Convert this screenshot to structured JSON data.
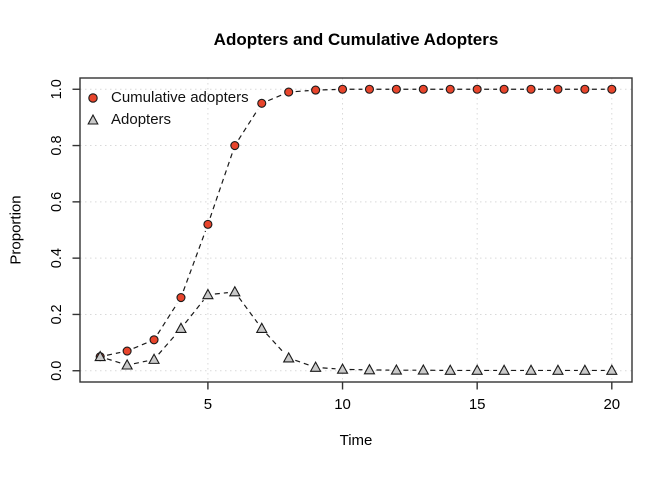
{
  "chart_data": {
    "type": "line",
    "title": "Adopters and Cumulative Adopters",
    "xlabel": "Time",
    "ylabel": "Proportion",
    "x": [
      1,
      2,
      3,
      4,
      5,
      6,
      7,
      8,
      9,
      10,
      11,
      12,
      13,
      14,
      15,
      16,
      17,
      18,
      19,
      20
    ],
    "series": [
      {
        "name": "Cumulative adopters",
        "marker": "circle",
        "marker_fill": "#e8452c",
        "values": [
          0.05,
          0.07,
          0.11,
          0.26,
          0.52,
          0.8,
          0.95,
          0.99,
          0.997,
          1.0,
          1.0,
          1.0,
          1.0,
          1.0,
          1.0,
          1.0,
          1.0,
          1.0,
          1.0,
          1.0
        ]
      },
      {
        "name": "Adopters",
        "marker": "triangle",
        "marker_fill": "#c9c9c9",
        "values": [
          0.05,
          0.02,
          0.04,
          0.15,
          0.27,
          0.28,
          0.15,
          0.045,
          0.012,
          0.005,
          0.003,
          0.002,
          0.002,
          0.001,
          0.001,
          0.001,
          0.001,
          0.001,
          0.001,
          0.001
        ]
      }
    ],
    "x_ticks": [
      5,
      10,
      15,
      20
    ],
    "y_ticks": [
      0.0,
      0.2,
      0.4,
      0.6,
      0.8,
      1.0
    ],
    "y_tick_labels": [
      "0.0",
      "0.2",
      "0.4",
      "0.6",
      "0.8",
      "1.0"
    ],
    "xlim": [
      0.25,
      20.75
    ],
    "ylim": [
      -0.04,
      1.04
    ],
    "grid": true,
    "legend_position": "top-left",
    "line_style": "dashed",
    "line_color": "#1a1a1a",
    "grid_color": "#d9d9d9",
    "axis_color": "#333333",
    "background": "#ffffff"
  }
}
